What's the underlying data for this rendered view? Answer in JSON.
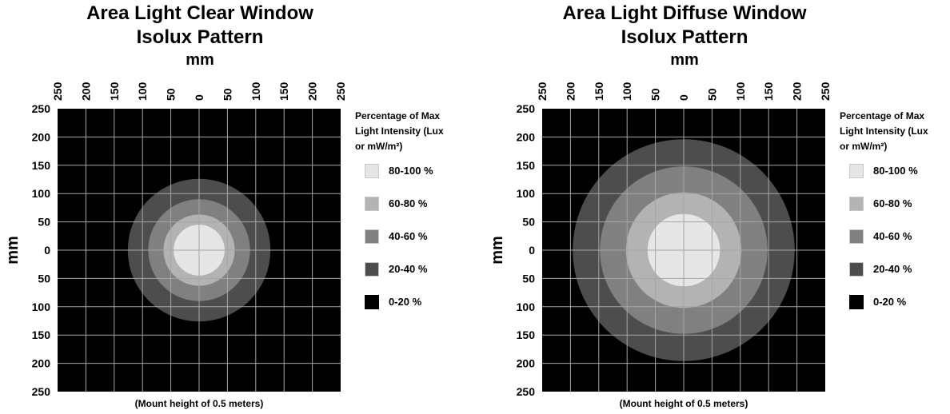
{
  "chart_data": [
    {
      "type": "heatmap",
      "title": "Area Light Clear Window",
      "subtitle": "Isolux Pattern",
      "xlabel": "mm",
      "ylabel": "mm",
      "note": "(Mount height of 0.5 meters)",
      "x_ticks": [
        "250",
        "200",
        "150",
        "100",
        "50",
        "0",
        "50",
        "100",
        "150",
        "200",
        "250"
      ],
      "y_ticks": [
        "250",
        "200",
        "150",
        "100",
        "50",
        "0",
        "50",
        "100",
        "150",
        "200",
        "250"
      ],
      "xlim": [
        -250,
        250
      ],
      "ylim": [
        -250,
        250
      ],
      "grid": true,
      "background_color": "#000000",
      "contours": [
        {
          "band": "20-40 %",
          "radius_mm": 126,
          "color": "#4d4d4d"
        },
        {
          "band": "40-60 %",
          "radius_mm": 90,
          "color": "#808080"
        },
        {
          "band": "60-80 %",
          "radius_mm": 63,
          "color": "#b3b3b3"
        },
        {
          "band": "80-100 %",
          "radius_mm": 45,
          "color": "#e6e6e6"
        }
      ],
      "legend": {
        "title_lines": [
          "Percentage of Max",
          "Light Intensity (Lux",
          "or mW/m²)"
        ],
        "placement": "right",
        "items": [
          {
            "label": "80-100 %",
            "color": "#e6e6e6"
          },
          {
            "label": "60-80 %",
            "color": "#b3b3b3"
          },
          {
            "label": "40-60 %",
            "color": "#808080"
          },
          {
            "label": "20-40 %",
            "color": "#4d4d4d"
          },
          {
            "label": "0-20 %",
            "color": "#000000"
          }
        ]
      }
    },
    {
      "type": "heatmap",
      "title": "Area Light Diffuse Window",
      "subtitle": "Isolux Pattern",
      "xlabel": "mm",
      "ylabel": "mm",
      "note": "(Mount height of 0.5 meters)",
      "x_ticks": [
        "250",
        "200",
        "150",
        "100",
        "50",
        "0",
        "50",
        "100",
        "150",
        "200",
        "250"
      ],
      "y_ticks": [
        "250",
        "200",
        "150",
        "100",
        "50",
        "0",
        "50",
        "100",
        "150",
        "200",
        "250"
      ],
      "xlim": [
        -250,
        250
      ],
      "ylim": [
        -250,
        250
      ],
      "grid": true,
      "background_color": "#000000",
      "contours": [
        {
          "band": "20-40 %",
          "radius_mm": 196,
          "color": "#4d4d4d"
        },
        {
          "band": "40-60 %",
          "radius_mm": 148,
          "color": "#808080"
        },
        {
          "band": "60-80 %",
          "radius_mm": 102,
          "color": "#b3b3b3"
        },
        {
          "band": "80-100 %",
          "radius_mm": 64,
          "color": "#e6e6e6"
        }
      ],
      "legend": {
        "title_lines": [
          "Percentage of Max",
          "Light Intensity (Lux",
          "or mW/m²)"
        ],
        "placement": "right",
        "items": [
          {
            "label": "80-100 %",
            "color": "#e6e6e6"
          },
          {
            "label": "60-80 %",
            "color": "#b3b3b3"
          },
          {
            "label": "40-60 %",
            "color": "#808080"
          },
          {
            "label": "20-40 %",
            "color": "#4d4d4d"
          },
          {
            "label": "0-20 %",
            "color": "#000000"
          }
        ]
      }
    }
  ]
}
